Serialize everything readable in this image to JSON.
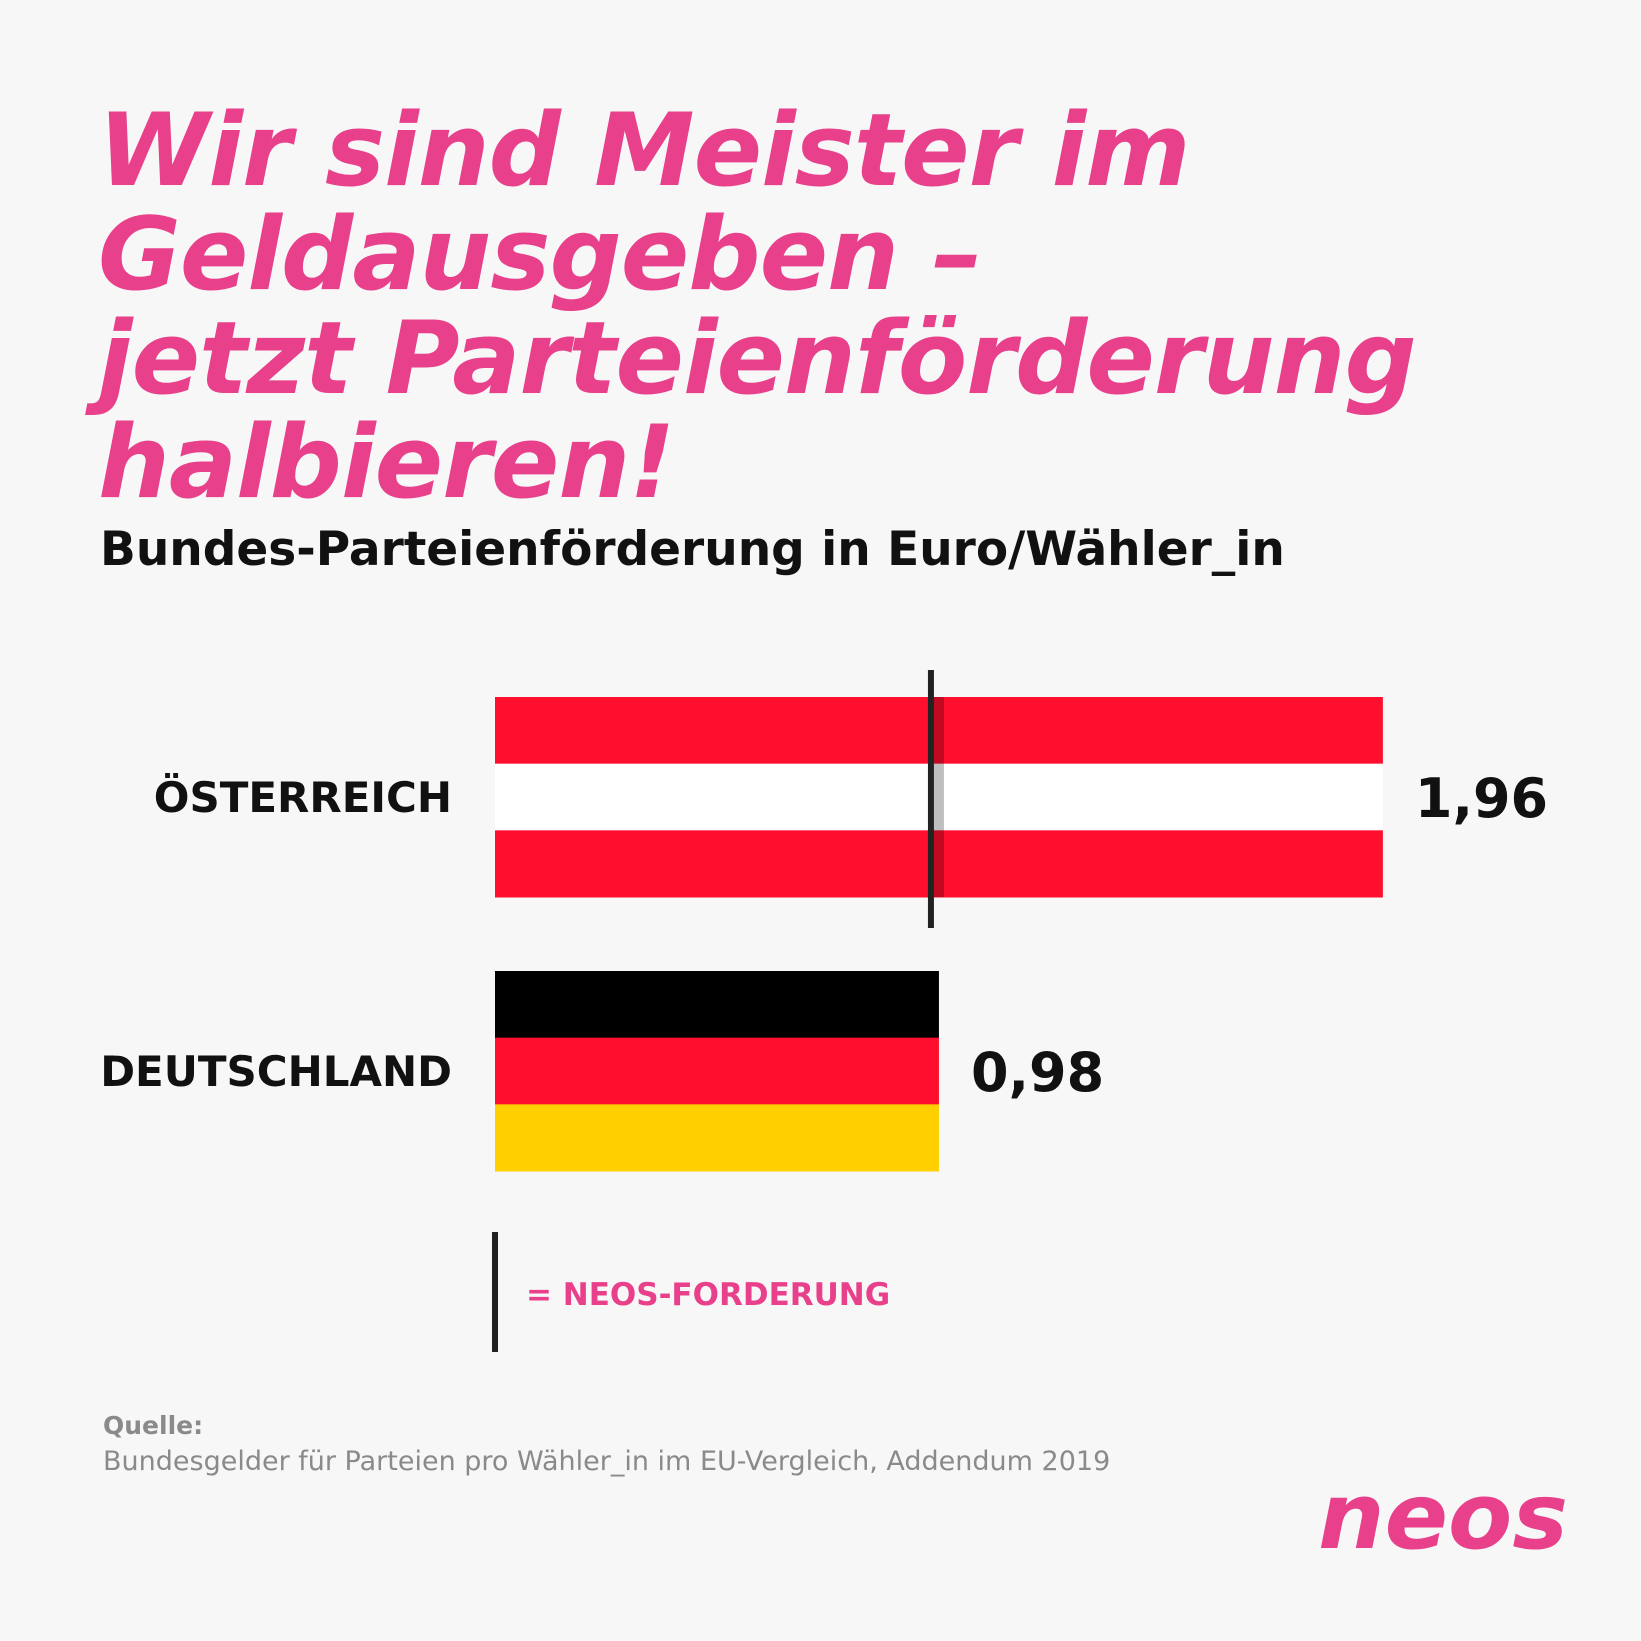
{
  "headline": {
    "lines": [
      "Wir sind Meister im",
      "Geldausgeben –",
      "jetzt Parteienförderung",
      "halbieren!"
    ]
  },
  "colors": {
    "pink": "#e8408a",
    "at_red": "#ff0e2d",
    "white": "#ffffff",
    "de_black": "#000000",
    "de_red": "#ff0e2d",
    "de_gold": "#ffcf00",
    "marker": "#222222"
  },
  "chart_data": {
    "type": "bar",
    "orientation": "horizontal",
    "title": "Bundes-Parteienförderung in Euro/Wähler_in",
    "categories": [
      "ÖSTERREICH",
      "DEUTSCHLAND"
    ],
    "values": [
      1.96,
      0.98
    ],
    "value_labels": [
      "1,96",
      "0,98"
    ],
    "bar_fills": [
      "flag-austria",
      "flag-germany"
    ],
    "reference_line": {
      "value": 0.98,
      "applies_to": "ÖSTERREICH"
    },
    "legend": {
      "symbol": "vertical-line",
      "text": "= NEOS-FORDERUNG"
    },
    "grid": false
  },
  "source": {
    "label": "Quelle:",
    "text": "Bundesgelder für Parteien pro Wähler_in im EU-Vergleich, Addendum 2019"
  },
  "logo": {
    "text": "neos",
    "icon": "neos-logo"
  }
}
